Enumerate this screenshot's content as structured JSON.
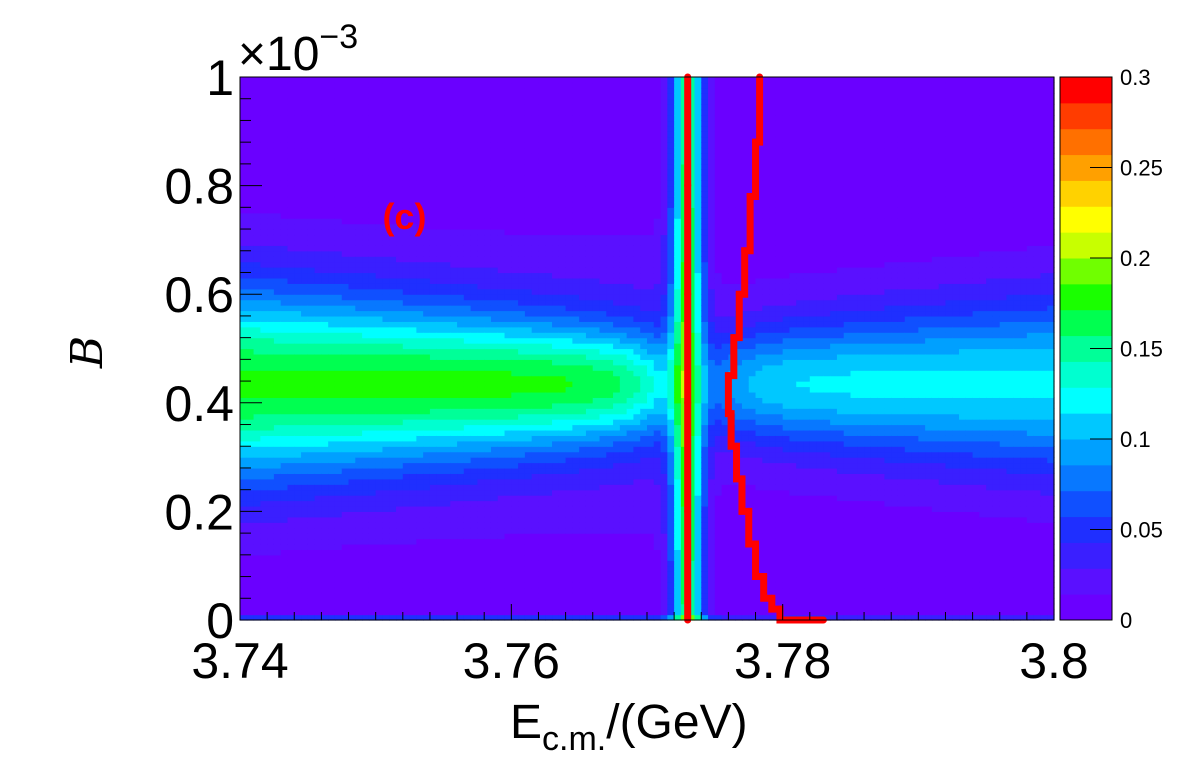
{
  "chart_data": {
    "type": "heatmap",
    "title": "",
    "xlabel": "E",
    "xlabel_subscript": "c.m.",
    "xlabel_suffix": "/(GeV)",
    "ylabel": "B",
    "y_exponent_label": "×10",
    "y_exponent_power": "−3",
    "xlim": [
      3.74,
      3.8
    ],
    "ylim": [
      0,
      1.0
    ],
    "x_ticks": [
      3.74,
      3.76,
      3.78,
      3.8
    ],
    "x_tick_labels": [
      "3.74",
      "3.76",
      "3.78",
      "3.8"
    ],
    "y_ticks": [
      0,
      0.2,
      0.4,
      0.6,
      0.8,
      1.0
    ],
    "y_tick_labels": [
      "0",
      "0.2",
      "0.4",
      "0.6",
      "0.8",
      "1"
    ],
    "colorbar": {
      "min": 0,
      "max": 0.3,
      "ticks": [
        0,
        0.05,
        0.1,
        0.15,
        0.2,
        0.25,
        0.3
      ],
      "tick_labels": [
        "0",
        "0.05",
        "0.1",
        "0.15",
        "0.2",
        "0.25",
        "0.3"
      ],
      "colors": [
        "#6a00ff",
        "#5a10ff",
        "#3a1fff",
        "#1f2fff",
        "#1050ff",
        "#0878ff",
        "#00a0ff",
        "#00c8ff",
        "#00ffff",
        "#00ffd0",
        "#00ff98",
        "#00ff50",
        "#1aff00",
        "#70ff00",
        "#c8ff00",
        "#ffff00",
        "#ffd200",
        "#ffa000",
        "#ff7000",
        "#ff3c00",
        "#ff0000"
      ]
    },
    "heatmap_features": {
      "band_center_B": 0.435,
      "band_width_B": 0.065,
      "left_band_peak": 0.14,
      "right_band_peak": 0.1,
      "resonance_E": 3.773,
      "resonance_peak": 0.3,
      "background_level": 0.0
    },
    "series": [
      {
        "type": "line",
        "color": "#ff0000",
        "x": [
          3.773,
          3.773,
          3.773,
          3.773,
          3.773,
          3.773
        ],
        "y": [
          0.0,
          0.2,
          0.4,
          0.6,
          0.8,
          1.0
        ]
      },
      {
        "type": "step",
        "color": "#ff0000",
        "x": [
          3.783,
          3.78,
          3.7798,
          3.7792,
          3.7786,
          3.778,
          3.7775,
          3.777,
          3.7766,
          3.7762,
          3.776,
          3.7764,
          3.7768,
          3.7772,
          3.7776,
          3.778,
          3.7783
        ],
        "y": [
          0.0,
          0.0,
          0.02,
          0.04,
          0.08,
          0.14,
          0.2,
          0.26,
          0.32,
          0.38,
          0.45,
          0.52,
          0.6,
          0.68,
          0.78,
          0.88,
          1.0
        ]
      }
    ],
    "annotations": [
      {
        "text": "(c)",
        "color": "#ff0000",
        "x": 3.7505,
        "y": 0.72
      }
    ]
  }
}
